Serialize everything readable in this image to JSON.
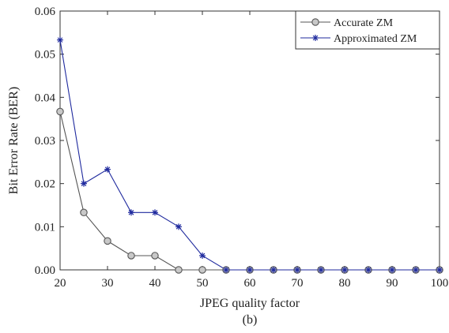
{
  "chart_data": {
    "type": "line",
    "xlabel": "JPEG quality  factor",
    "ylabel": "Bit Error Rate (BER)",
    "caption": "(b)",
    "xlim": [
      20,
      100
    ],
    "ylim": [
      0,
      0.06
    ],
    "xticks": [
      "20",
      "30",
      "40",
      "50",
      "60",
      "70",
      "80",
      "90",
      "100"
    ],
    "yticks": [
      "0.00",
      "0.01",
      "0.02",
      "0.03",
      "0.04",
      "0.05",
      "0.06"
    ],
    "grid": false,
    "legend": "top-right",
    "x": [
      20,
      25,
      30,
      35,
      40,
      45,
      50,
      55,
      60,
      65,
      70,
      75,
      80,
      85,
      90,
      95,
      100
    ],
    "series": [
      {
        "name": "Accurate ZM",
        "marker": "circle",
        "color": "#555555",
        "values": [
          0.0367,
          0.0133,
          0.0067,
          0.0033,
          0.0033,
          0,
          0,
          0,
          0,
          0,
          0,
          0,
          0,
          0,
          0,
          0,
          0
        ]
      },
      {
        "name": "Approximated ZM",
        "marker": "star",
        "color": "#1f2a9e",
        "values": [
          0.0533,
          0.02,
          0.0233,
          0.0133,
          0.0133,
          0.01,
          0.0033,
          0,
          0,
          0,
          0,
          0,
          0,
          0,
          0,
          0,
          0
        ]
      }
    ]
  }
}
